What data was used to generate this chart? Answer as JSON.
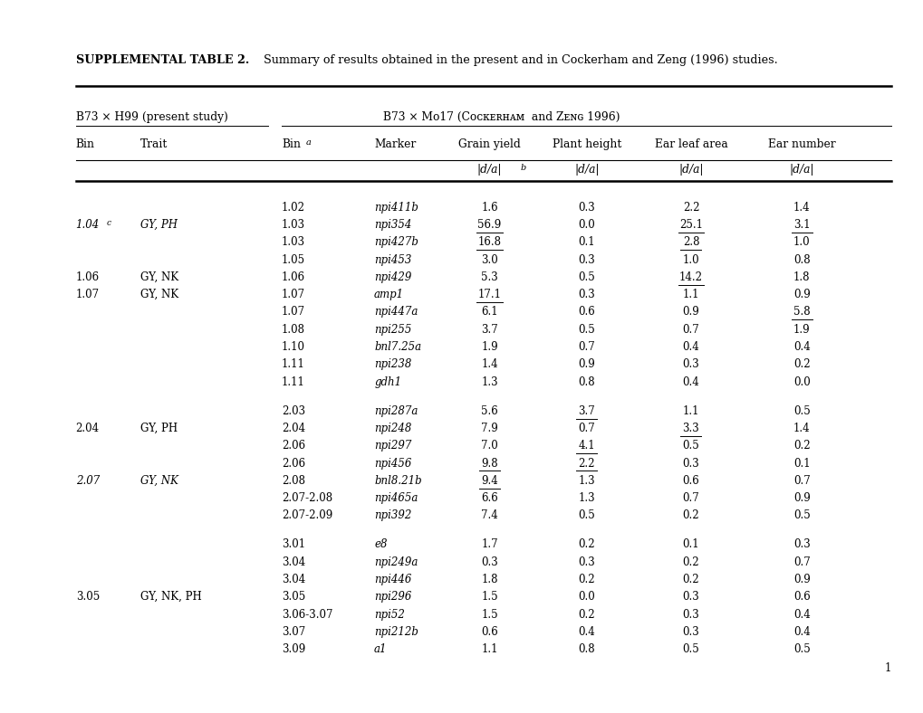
{
  "title_bold": "SUPPLEMENTAL TABLE 2.",
  "title_rest": "  Summary of results obtained in the present and in Cockerham and Zeng (1996) studies.",
  "header1_left": "B73 × H99 (present study)",
  "header1_right": "B73 × Mo17 (Cᴏᴄᴋᴇʀʜᴀᴍ  and Zᴇɴɢ 1996)",
  "col_headers": [
    "Bin",
    "Trait",
    "Bin",
    "Marker",
    "Grain yield",
    "Plant height",
    "Ear leaf area",
    "Ear number"
  ],
  "rows": [
    [
      "",
      "",
      "1.02",
      "npi411b",
      "1.6",
      "0.3",
      "2.2",
      "1.4",
      false,
      false,
      false,
      false
    ],
    [
      "1.04",
      "GY, PH",
      "1.03",
      "npi354",
      "56.9",
      "0.0",
      "25.1",
      "3.1",
      true,
      false,
      true,
      true,
      true,
      true
    ],
    [
      "",
      "",
      "1.03",
      "npi427b",
      "16.8",
      "0.1",
      "2.8",
      "1.0",
      true,
      false,
      true,
      false,
      false,
      false
    ],
    [
      "",
      "",
      "1.05",
      "npi453",
      "3.0",
      "0.3",
      "1.0",
      "0.8",
      false,
      false,
      false,
      false,
      false,
      false
    ],
    [
      "1.06",
      "GY, NK",
      "1.06",
      "npi429",
      "5.3",
      "0.5",
      "14.2",
      "1.8",
      false,
      false,
      true,
      false,
      false,
      false
    ],
    [
      "1.07",
      "GY, NK",
      "1.07",
      "amp1",
      "17.1",
      "0.3",
      "1.1",
      "0.9",
      true,
      false,
      false,
      false,
      false,
      false
    ],
    [
      "",
      "",
      "1.07",
      "npi447a",
      "6.1",
      "0.6",
      "0.9",
      "5.8",
      false,
      false,
      false,
      true,
      false,
      false
    ],
    [
      "",
      "",
      "1.08",
      "npi255",
      "3.7",
      "0.5",
      "0.7",
      "1.9",
      false,
      false,
      false,
      false,
      false,
      false
    ],
    [
      "",
      "",
      "1.10",
      "bnl7.25a",
      "1.9",
      "0.7",
      "0.4",
      "0.4",
      false,
      false,
      false,
      false,
      false,
      false
    ],
    [
      "",
      "",
      "1.11",
      "npi238",
      "1.4",
      "0.9",
      "0.3",
      "0.2",
      false,
      false,
      false,
      false,
      false,
      false
    ],
    [
      "",
      "",
      "1.11",
      "gdh1",
      "1.3",
      "0.8",
      "0.4",
      "0.0",
      false,
      false,
      false,
      false,
      false,
      false
    ],
    [
      "GAP",
      "",
      "",
      "",
      "",
      "",
      "",
      "",
      false,
      false,
      false,
      false,
      false,
      false
    ],
    [
      "",
      "",
      "2.03",
      "npi287a",
      "5.6",
      "3.7",
      "1.1",
      "0.5",
      false,
      true,
      false,
      false,
      false,
      false
    ],
    [
      "2.04",
      "GY, PH",
      "2.04",
      "npi248",
      "7.9",
      "0.7",
      "3.3",
      "1.4",
      false,
      false,
      true,
      false,
      false,
      false
    ],
    [
      "",
      "",
      "2.06",
      "npi297",
      "7.0",
      "4.1",
      "0.5",
      "0.2",
      false,
      true,
      false,
      false,
      false,
      false
    ],
    [
      "",
      "",
      "2.06",
      "npi456",
      "9.8",
      "2.2",
      "0.3",
      "0.1",
      true,
      true,
      false,
      false,
      false,
      false
    ],
    [
      "2.07",
      "GY, NK",
      "2.08",
      "bnl8.21b",
      "9.4",
      "1.3",
      "0.6",
      "0.7",
      true,
      false,
      false,
      false,
      true,
      true
    ],
    [
      "",
      "",
      "2.07-2.08",
      "npi465a",
      "6.6",
      "1.3",
      "0.7",
      "0.9",
      false,
      false,
      false,
      false,
      false,
      false
    ],
    [
      "",
      "",
      "2.07-2.09",
      "npi392",
      "7.4",
      "0.5",
      "0.2",
      "0.5",
      false,
      false,
      false,
      false,
      false,
      false
    ],
    [
      "GAP",
      "",
      "",
      "",
      "",
      "",
      "",
      "",
      false,
      false,
      false,
      false,
      false,
      false
    ],
    [
      "",
      "",
      "3.01",
      "e8",
      "1.7",
      "0.2",
      "0.1",
      "0.3",
      false,
      false,
      false,
      false,
      false,
      false
    ],
    [
      "",
      "",
      "3.04",
      "npi249a",
      "0.3",
      "0.3",
      "0.2",
      "0.7",
      false,
      false,
      false,
      false,
      false,
      false
    ],
    [
      "",
      "",
      "3.04",
      "npi446",
      "1.8",
      "0.2",
      "0.2",
      "0.9",
      false,
      false,
      false,
      false,
      false,
      false
    ],
    [
      "3.05",
      "GY, NK, PH",
      "3.05",
      "npi296",
      "1.5",
      "0.0",
      "0.3",
      "0.6",
      false,
      false,
      false,
      false,
      false,
      false
    ],
    [
      "",
      "",
      "3.06-3.07",
      "npi52",
      "1.5",
      "0.2",
      "0.3",
      "0.4",
      false,
      false,
      false,
      false,
      false,
      false
    ],
    [
      "",
      "",
      "3.07",
      "npi212b",
      "0.6",
      "0.4",
      "0.3",
      "0.4",
      false,
      false,
      false,
      false,
      false,
      false
    ],
    [
      "",
      "",
      "3.09",
      "a1",
      "1.1",
      "0.8",
      "0.5",
      "0.5",
      false,
      false,
      false,
      false,
      false,
      false
    ]
  ],
  "italic_bins": [
    "1.04",
    "2.07"
  ],
  "page_number": "1"
}
